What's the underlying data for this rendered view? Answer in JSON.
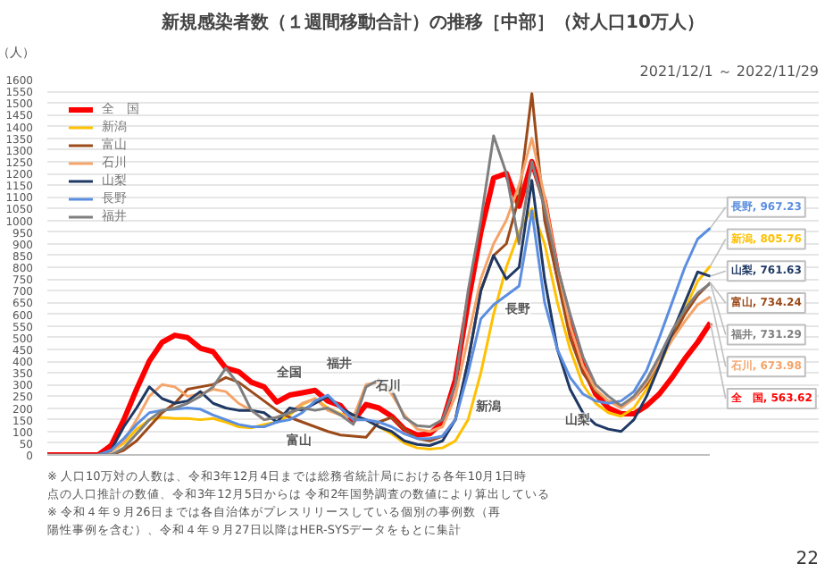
{
  "chart_data": {
    "type": "line",
    "title": "新規感染者数（１週間移動合計）の推移［中部］（対人口10万人）",
    "subtitle": "2021/12/1 ～ 2022/11/29",
    "ylabel": "（人）",
    "categories": [
      null,
      null,
      null,
      null,
      null,
      null,
      null,
      null,
      null,
      null,
      null,
      null,
      null,
      null,
      null,
      null,
      null,
      null,
      null,
      null,
      null,
      null,
      null,
      null,
      null,
      null,
      null,
      null,
      null,
      null,
      null,
      null,
      null,
      null,
      null,
      null,
      null,
      null,
      null,
      null,
      null,
      null,
      null,
      null,
      null,
      null,
      null,
      null,
      null,
      null,
      null,
      null,
      null
    ],
    "ylim": [
      0,
      1600
    ],
    "yticks": [
      0,
      50,
      100,
      150,
      200,
      250,
      300,
      350,
      400,
      450,
      500,
      550,
      600,
      650,
      700,
      750,
      800,
      850,
      900,
      950,
      1000,
      1050,
      1100,
      1150,
      1200,
      1250,
      1300,
      1350,
      1400,
      1450,
      1500,
      1550,
      1600
    ],
    "grid": "y",
    "legend": "top left",
    "tick_labels": "y",
    "series": [
      {
        "name": "全　国",
        "color": "#ff0000",
        "values": [
          0,
          0,
          0,
          0,
          0,
          40,
          150,
          280,
          400,
          480,
          510,
          500,
          455,
          440,
          370,
          355,
          310,
          290,
          225,
          255,
          265,
          275,
          230,
          210,
          145,
          215,
          200,
          165,
          110,
          85,
          90,
          140,
          320,
          650,
          950,
          1180,
          1200,
          1060,
          1250,
          1080,
          780,
          560,
          380,
          260,
          200,
          175,
          175,
          210,
          260,
          330,
          410,
          480,
          563.62
        ],
        "value_labels": [
          null,
          null,
          null,
          null,
          null,
          null,
          null,
          null,
          null,
          null,
          null,
          null,
          null,
          null,
          null,
          null,
          null,
          null,
          null,
          null,
          null,
          null,
          null,
          null,
          null,
          null,
          null,
          null,
          null,
          null,
          null,
          null,
          null,
          null,
          null,
          null,
          null,
          null,
          null,
          null,
          null,
          null,
          null,
          null,
          null,
          null,
          null,
          null,
          null,
          null,
          null,
          null,
          "全　国, 563.62"
        ]
      },
      {
        "name": "新潟",
        "color": "#ffc000",
        "values": [
          null,
          null,
          null,
          null,
          0,
          15,
          50,
          110,
          150,
          160,
          155,
          155,
          150,
          155,
          140,
          120,
          115,
          130,
          140,
          170,
          215,
          240,
          200,
          175,
          160,
          150,
          120,
          90,
          50,
          30,
          25,
          30,
          60,
          150,
          350,
          600,
          800,
          950,
          1050,
          900,
          650,
          450,
          300,
          220,
          180,
          165,
          200,
          280,
          380,
          500,
          620,
          740,
          805.76
        ],
        "value_labels": [
          null,
          null,
          null,
          null,
          null,
          null,
          null,
          null,
          null,
          null,
          null,
          null,
          null,
          null,
          null,
          null,
          null,
          null,
          null,
          null,
          null,
          null,
          null,
          null,
          null,
          null,
          null,
          null,
          null,
          null,
          null,
          null,
          null,
          null,
          null,
          null,
          null,
          null,
          null,
          null,
          null,
          null,
          null,
          null,
          null,
          null,
          null,
          null,
          null,
          null,
          null,
          null,
          "新潟, 805.76"
        ]
      },
      {
        "name": "富山",
        "color": "#9c4a1a",
        "values": [
          null,
          null,
          null,
          null,
          0,
          0,
          20,
          60,
          120,
          180,
          220,
          280,
          290,
          300,
          330,
          310,
          270,
          230,
          190,
          160,
          140,
          120,
          100,
          85,
          80,
          75,
          140,
          160,
          110,
          70,
          60,
          80,
          150,
          400,
          700,
          850,
          900,
          1100,
          1540,
          1000,
          750,
          500,
          350,
          270,
          230,
          210,
          240,
          300,
          400,
          500,
          600,
          680,
          734.24
        ],
        "value_labels": [
          null,
          null,
          null,
          null,
          null,
          null,
          null,
          null,
          null,
          null,
          null,
          null,
          null,
          null,
          null,
          null,
          null,
          null,
          null,
          null,
          null,
          null,
          null,
          null,
          null,
          null,
          null,
          null,
          null,
          null,
          null,
          null,
          null,
          null,
          null,
          null,
          null,
          null,
          null,
          null,
          null,
          null,
          null,
          null,
          null,
          null,
          null,
          null,
          null,
          null,
          null,
          null,
          "富山, 734.24"
        ]
      },
      {
        "name": "石川",
        "color": "#f4a46a",
        "values": [
          null,
          null,
          null,
          null,
          0,
          15,
          60,
          150,
          250,
          300,
          290,
          250,
          260,
          280,
          270,
          220,
          190,
          150,
          160,
          180,
          220,
          240,
          190,
          170,
          160,
          300,
          310,
          260,
          170,
          110,
          100,
          120,
          250,
          500,
          750,
          900,
          1000,
          1150,
          1350,
          1100,
          800,
          550,
          380,
          280,
          230,
          200,
          240,
          310,
          400,
          490,
          570,
          640,
          673.98
        ],
        "value_labels": [
          null,
          null,
          null,
          null,
          null,
          null,
          null,
          null,
          null,
          null,
          null,
          null,
          null,
          null,
          null,
          null,
          null,
          null,
          null,
          null,
          null,
          null,
          null,
          null,
          null,
          null,
          null,
          null,
          null,
          null,
          null,
          null,
          null,
          null,
          null,
          null,
          null,
          null,
          null,
          null,
          null,
          null,
          null,
          null,
          null,
          null,
          null,
          null,
          null,
          null,
          null,
          null,
          "石川, 673.98"
        ]
      },
      {
        "name": "山梨",
        "color": "#1f3864",
        "values": [
          null,
          null,
          null,
          null,
          0,
          20,
          120,
          200,
          290,
          240,
          220,
          230,
          270,
          220,
          200,
          190,
          190,
          180,
          140,
          200,
          190,
          220,
          250,
          200,
          170,
          150,
          120,
          100,
          60,
          45,
          40,
          60,
          150,
          400,
          700,
          850,
          750,
          800,
          1170,
          750,
          450,
          280,
          180,
          130,
          110,
          100,
          150,
          250,
          380,
          520,
          650,
          780,
          761.63
        ],
        "value_labels": [
          null,
          null,
          null,
          null,
          null,
          null,
          null,
          null,
          null,
          null,
          null,
          null,
          null,
          null,
          null,
          null,
          null,
          null,
          null,
          null,
          null,
          null,
          null,
          null,
          null,
          null,
          null,
          null,
          null,
          null,
          null,
          null,
          null,
          null,
          null,
          null,
          null,
          null,
          null,
          null,
          null,
          null,
          null,
          null,
          null,
          null,
          null,
          null,
          null,
          null,
          null,
          null,
          "山梨, 761.63"
        ]
      },
      {
        "name": "長野",
        "color": "#5b8ee0",
        "values": [
          null,
          null,
          null,
          null,
          0,
          20,
          70,
          130,
          180,
          190,
          195,
          200,
          195,
          170,
          150,
          130,
          120,
          120,
          140,
          150,
          180,
          230,
          255,
          200,
          150,
          150,
          140,
          120,
          90,
          70,
          70,
          80,
          150,
          350,
          580,
          640,
          680,
          720,
          1040,
          650,
          450,
          330,
          260,
          230,
          220,
          230,
          270,
          360,
          500,
          650,
          800,
          920,
          967.23
        ],
        "value_labels": [
          null,
          null,
          null,
          null,
          null,
          null,
          null,
          null,
          null,
          null,
          null,
          null,
          null,
          null,
          null,
          null,
          null,
          null,
          null,
          null,
          null,
          null,
          null,
          null,
          null,
          null,
          null,
          null,
          null,
          null,
          null,
          null,
          null,
          null,
          null,
          null,
          null,
          null,
          null,
          null,
          null,
          null,
          null,
          null,
          null,
          null,
          null,
          null,
          null,
          null,
          null,
          null,
          "長野, 967.23"
        ]
      },
      {
        "name": "福井",
        "color": "#7f7f7f",
        "values": [
          0,
          0,
          0,
          0,
          0,
          0,
          30,
          90,
          150,
          190,
          200,
          220,
          250,
          290,
          370,
          300,
          190,
          150,
          160,
          180,
          200,
          190,
          200,
          170,
          130,
          290,
          320,
          280,
          160,
          125,
          120,
          150,
          300,
          700,
          1000,
          1360,
          1200,
          900,
          1250,
          1050,
          800,
          600,
          420,
          300,
          250,
          210,
          250,
          320,
          420,
          530,
          620,
          690,
          731.29
        ],
        "value_labels": [
          null,
          null,
          null,
          null,
          null,
          null,
          null,
          null,
          null,
          null,
          null,
          null,
          null,
          null,
          null,
          null,
          null,
          null,
          null,
          null,
          null,
          null,
          null,
          null,
          null,
          null,
          null,
          null,
          null,
          null,
          null,
          null,
          null,
          null,
          null,
          null,
          null,
          null,
          null,
          null,
          null,
          null,
          null,
          null,
          null,
          null,
          null,
          null,
          null,
          null,
          null,
          null,
          "福井, 731.29"
        ]
      }
    ],
    "annotations": [
      "全国",
      "福井",
      "石川",
      "富山",
      "長野",
      "新潟",
      "山梨",
      "※ 人口10万対の人数は、令和3年12月4日までは総務省統計局における各年10月1日時点の人口推計の数値、令和3年12月5日からは 令和2年国勢調査の数値により算出している",
      "※ 令和４年９月26日までは各自治体がプレスリリースしている個別の事例数（再陽性事例を含む）、令和４年９月27日以降はHER-SYSデータをもとに集計",
      "22"
    ]
  }
}
